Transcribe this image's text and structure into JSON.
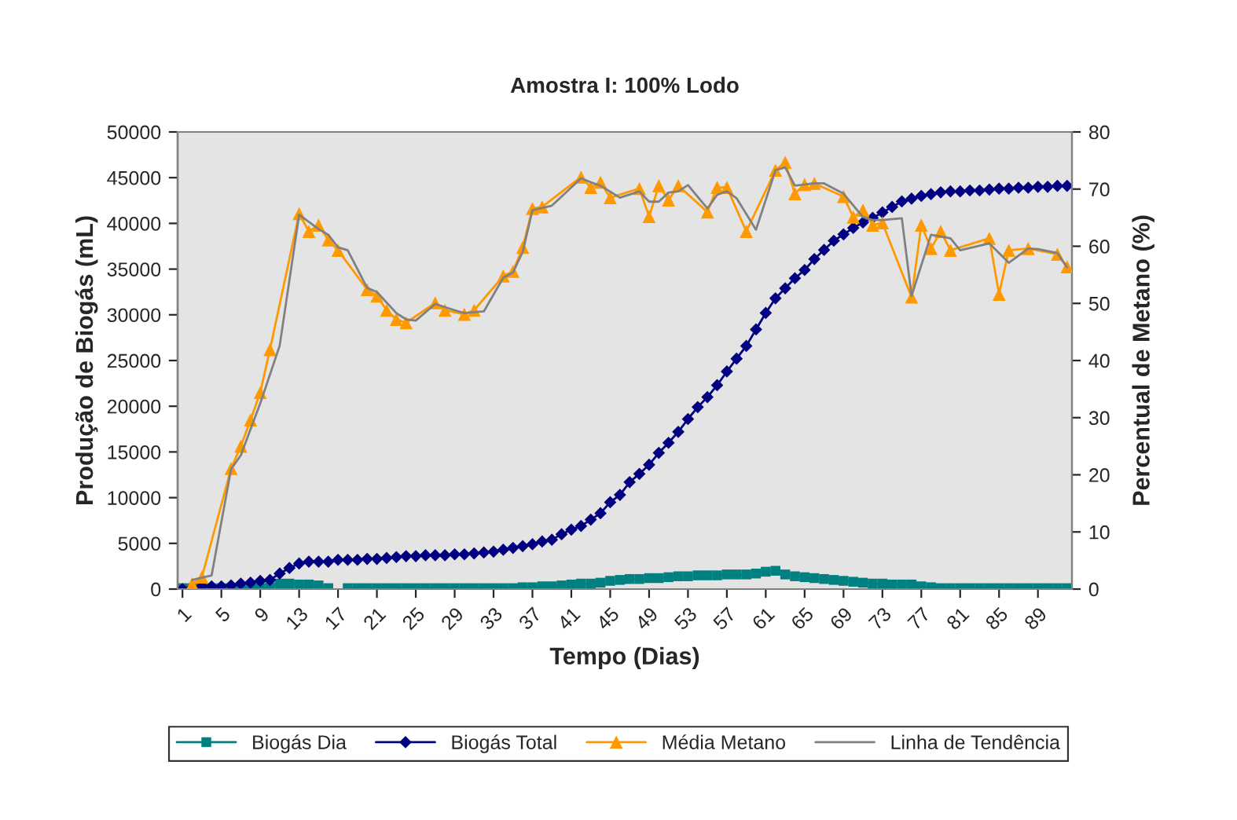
{
  "chart_data": {
    "type": "line",
    "title": "Amostra I: 100% Lodo",
    "xlabel": "Tempo (Dias)",
    "ylabel": "Produção de Biogás (mL)",
    "y2label": "Percentual de Metano (%)",
    "x": [
      1,
      2,
      3,
      4,
      5,
      6,
      7,
      8,
      9,
      10,
      11,
      12,
      13,
      14,
      15,
      16,
      17,
      18,
      19,
      20,
      21,
      22,
      23,
      24,
      25,
      26,
      27,
      28,
      29,
      30,
      31,
      32,
      33,
      34,
      35,
      36,
      37,
      38,
      39,
      40,
      41,
      42,
      43,
      44,
      45,
      46,
      47,
      48,
      49,
      50,
      51,
      52,
      53,
      54,
      55,
      56,
      57,
      58,
      59,
      60,
      61,
      62,
      63,
      64,
      65,
      66,
      67,
      68,
      69,
      70,
      71,
      72,
      73,
      74,
      75,
      76,
      77,
      78,
      79,
      80,
      81,
      82,
      83,
      84,
      85,
      86,
      87,
      88,
      89,
      90,
      91,
      92
    ],
    "xlim": [
      0.5,
      92.5
    ],
    "xticks": [
      1,
      5,
      9,
      13,
      17,
      21,
      25,
      29,
      33,
      37,
      41,
      45,
      49,
      53,
      57,
      61,
      65,
      69,
      73,
      77,
      81,
      85,
      89
    ],
    "ylim": [
      0,
      50000
    ],
    "yticks": [
      0,
      5000,
      10000,
      15000,
      20000,
      25000,
      30000,
      35000,
      40000,
      45000,
      50000
    ],
    "y2lim": [
      0,
      80
    ],
    "y2ticks": [
      0,
      10,
      20,
      30,
      40,
      50,
      60,
      70,
      80
    ],
    "grid": false,
    "legend": "bottom",
    "line_style": "solid",
    "series": [
      {
        "name": "Biogás Dia",
        "color": "#008080",
        "marker": "square",
        "values": [
          100,
          100,
          200,
          100,
          100,
          100,
          200,
          200,
          100,
          200,
          600,
          600,
          500,
          500,
          400,
          100,
          null,
          100,
          100,
          100,
          100,
          100,
          100,
          100,
          100,
          100,
          100,
          100,
          100,
          100,
          100,
          100,
          100,
          100,
          100,
          200,
          200,
          300,
          300,
          400,
          500,
          600,
          600,
          700,
          900,
          1000,
          1100,
          1100,
          1200,
          1200,
          1300,
          1400,
          1400,
          1500,
          1500,
          1500,
          1600,
          1600,
          1600,
          1700,
          1900,
          2000,
          1600,
          1400,
          1300,
          1200,
          1100,
          1000,
          900,
          800,
          700,
          600,
          600,
          500,
          500,
          500,
          300,
          200,
          100,
          100,
          100,
          100,
          100,
          100,
          100,
          100,
          100,
          100,
          100,
          100,
          100,
          100
        ]
      },
      {
        "name": "Biogás Total",
        "color": "#000080",
        "marker": "diamond",
        "values": [
          0,
          200,
          300,
          300,
          300,
          400,
          600,
          700,
          900,
          1000,
          1700,
          2300,
          2800,
          3000,
          3000,
          3000,
          3200,
          3200,
          3200,
          3300,
          3300,
          3400,
          3500,
          3600,
          3600,
          3700,
          3700,
          3700,
          3800,
          3800,
          3900,
          4000,
          4100,
          4300,
          4500,
          4700,
          4900,
          5200,
          5400,
          6000,
          6500,
          6900,
          7600,
          8300,
          9500,
          10300,
          11700,
          12600,
          13600,
          14900,
          16000,
          17200,
          18600,
          19900,
          21000,
          22300,
          23800,
          25200,
          26600,
          28400,
          30200,
          31800,
          32900,
          34000,
          34900,
          36100,
          37100,
          38100,
          38800,
          39500,
          40100,
          40600,
          41200,
          41800,
          42400,
          42700,
          43000,
          43200,
          43400,
          43500,
          43500,
          43600,
          43600,
          43700,
          43800,
          43800,
          43900,
          43900,
          44000,
          44000,
          44100,
          44100
        ]
      },
      {
        "name": "Média Metano",
        "color": "#ff9900",
        "marker": "triangle",
        "axis": "y2",
        "x": [
          2,
          3,
          6,
          7,
          8,
          9,
          10,
          13,
          14,
          15,
          16,
          17,
          20,
          21,
          22,
          23,
          24,
          27,
          28,
          30,
          31,
          34,
          35,
          36,
          37,
          38,
          42,
          43,
          44,
          45,
          48,
          49,
          50,
          51,
          52,
          55,
          56,
          57,
          59,
          62,
          63,
          64,
          65,
          66,
          69,
          70,
          71,
          72,
          73,
          76,
          77,
          78,
          79,
          80,
          84,
          85,
          86,
          88,
          91,
          92
        ],
        "values": [
          0.9,
          2.1,
          21.1,
          25.0,
          29.6,
          34.4,
          41.9,
          65.7,
          62.6,
          63.7,
          61.1,
          59.3,
          52.4,
          51.3,
          48.8,
          47.2,
          46.6,
          50.1,
          48.8,
          48.1,
          48.8,
          54.8,
          55.6,
          59.8,
          66.6,
          66.9,
          72.1,
          70.3,
          71.2,
          68.5,
          70.1,
          65.2,
          70.6,
          68.1,
          70.6,
          66.0,
          70.3,
          70.3,
          62.6,
          73.3,
          74.7,
          69.2,
          70.8,
          71.0,
          68.7,
          65.1,
          66.3,
          63.7,
          64.1,
          51.1,
          63.7,
          59.6,
          62.6,
          59.3,
          61.4,
          51.6,
          59.3,
          59.6,
          58.6,
          56.4
        ]
      },
      {
        "name": "Linha de Tendência",
        "color": "#808080",
        "marker": "none",
        "axis": "y2",
        "x": [
          2,
          4,
          6,
          7,
          9,
          11,
          13,
          15,
          16,
          17,
          18,
          20,
          21,
          23,
          24,
          25,
          27,
          29,
          30,
          32,
          34,
          35,
          36,
          37,
          39,
          42,
          43,
          44,
          46,
          48,
          49,
          50,
          51,
          52,
          53,
          55,
          56,
          57,
          58,
          60,
          62,
          63,
          64,
          66,
          67,
          69,
          71,
          72,
          73,
          75,
          76,
          78,
          80,
          81,
          84,
          86,
          88,
          89,
          91,
          92
        ],
        "values": [
          1.6,
          2.4,
          21.0,
          23.4,
          32.5,
          42.6,
          65.5,
          63.0,
          62.0,
          59.8,
          59.3,
          52.7,
          52.0,
          48.3,
          47.2,
          47.0,
          49.9,
          48.8,
          48.3,
          48.6,
          54.5,
          55.4,
          59.0,
          66.3,
          67.1,
          71.9,
          71.2,
          70.6,
          68.5,
          69.6,
          67.8,
          67.8,
          69.4,
          69.6,
          70.7,
          66.6,
          69.0,
          69.6,
          68.4,
          62.9,
          73.3,
          73.8,
          70.6,
          71.0,
          71.0,
          69.2,
          65.1,
          64.6,
          64.6,
          64.9,
          51.3,
          62.0,
          61.4,
          59.3,
          60.5,
          57.1,
          59.6,
          59.5,
          58.8,
          56.3
        ]
      }
    ]
  }
}
